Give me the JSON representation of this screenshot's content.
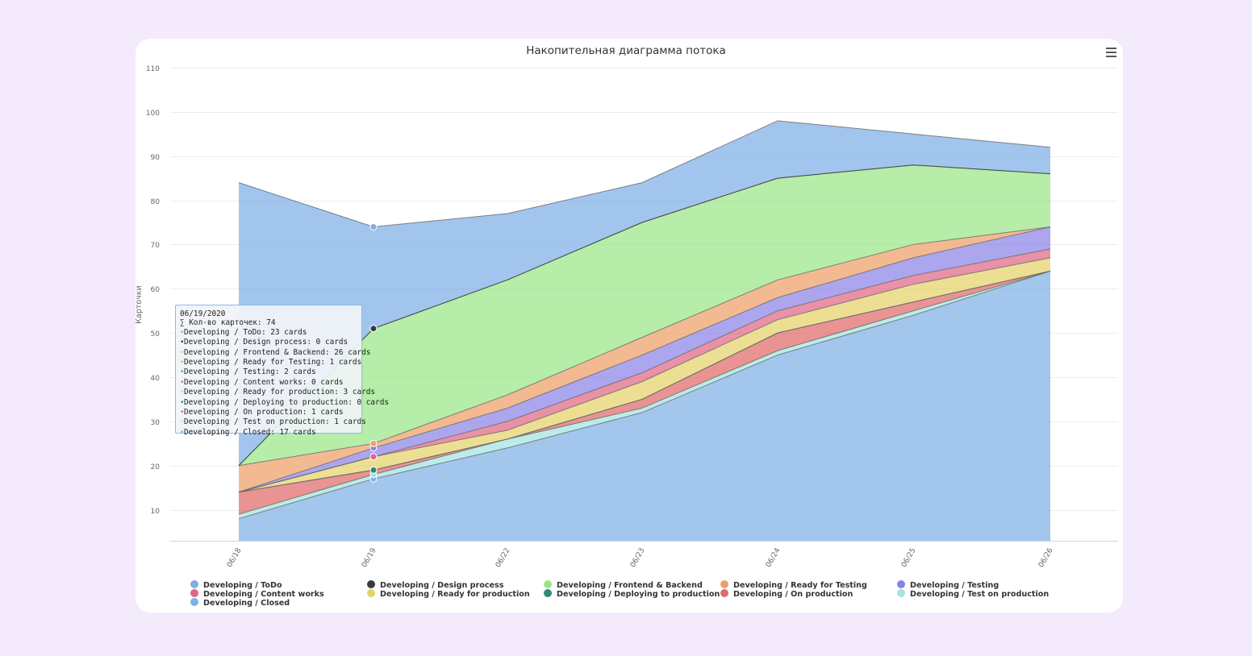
{
  "colors": {
    "page_bg": "#f3eafc",
    "closed": "#7fb0e6",
    "test_on_production": "#a1e4e1",
    "on_production": "#e06a6a",
    "ready_for_production": "#e5d36a",
    "content_works": "#e06683",
    "testing": "#8a83e6",
    "ready_for_testing": "#ee9f68",
    "frontend_backend": "#98e688",
    "design_process": "#3a3a3a",
    "todo": "#7eaee6",
    "deploying": "#2f8a78"
  },
  "menu": {
    "icon": "hamburger-menu-icon"
  },
  "tooltip": {
    "date": "06/19/2020",
    "total": "∑ Кол-во карточек: 74",
    "lines": [
      "Developing / ToDo: 23 cards",
      "Developing / Design process: 0 cards",
      "Developing / Frontend & Backend: 26 cards",
      "Developing / Ready for Testing: 1 cards",
      "Developing / Testing: 2 cards",
      "Developing / Content works: 0 cards",
      "Developing / Ready for production: 3 cards",
      "Developing / Deploying to production: 0 cards",
      "Developing / On production: 1 cards",
      "Developing / Test on production: 1 cards",
      "Developing / Closed: 17 cards"
    ],
    "dot_colors": [
      "#7eaee6",
      "#3a3a3a",
      "#98e688",
      "#ee9f68",
      "#8a83e6",
      "#e06683",
      "#e5d36a",
      "#2f8a78",
      "#e06a6a",
      "#a1e4e1",
      "#7fb0e6"
    ]
  },
  "legend": [
    {
      "label": "Developing / ToDo",
      "color": "#7eaee6"
    },
    {
      "label": "Developing / Design process",
      "color": "#3a3a3a"
    },
    {
      "label": "Developing / Frontend & Backend",
      "color": "#98e688"
    },
    {
      "label": "Developing / Ready for Testing",
      "color": "#ee9f68"
    },
    {
      "label": "Developing / Testing",
      "color": "#8a83e6"
    },
    {
      "label": "Developing / Content works",
      "color": "#e06683"
    },
    {
      "label": "Developing / Ready for production",
      "color": "#e5d36a"
    },
    {
      "label": "Developing / Deploying to production",
      "color": "#2f8a78"
    },
    {
      "label": "Developing / On production",
      "color": "#e06a6a"
    },
    {
      "label": "Developing / Test on production",
      "color": "#a1e4e1"
    },
    {
      "label": "Developing / Closed",
      "color": "#7fb0e6"
    }
  ],
  "chart_data": {
    "type": "area",
    "stacked": true,
    "title": "Накопительная диаграмма потока",
    "ylabel": "Карточки",
    "xlabel": "",
    "categories": [
      "06/18",
      "06/19",
      "06/22",
      "06/23",
      "06/24",
      "06/25",
      "06/26"
    ],
    "ylim": [
      3,
      110
    ],
    "yticks": [
      10,
      20,
      30,
      40,
      50,
      60,
      70,
      80,
      90,
      100,
      110
    ],
    "grid": true,
    "legend_position": "bottom",
    "series": [
      {
        "name": "Developing / Closed",
        "color": "#7fb0e6",
        "values": [
          8,
          17,
          24,
          32,
          45,
          54,
          64
        ]
      },
      {
        "name": "Developing / Test on production",
        "color": "#a1e4e1",
        "values": [
          1,
          1,
          2,
          1,
          1,
          1,
          0
        ]
      },
      {
        "name": "Developing / On production",
        "color": "#e06a6a",
        "values": [
          5,
          1,
          0,
          2,
          4,
          2,
          0
        ]
      },
      {
        "name": "Developing / Deploying to production",
        "color": "#2f8a78",
        "values": [
          0,
          0,
          0,
          0,
          0,
          0,
          0
        ]
      },
      {
        "name": "Developing / Ready for production",
        "color": "#e5d36a",
        "values": [
          0,
          3,
          2,
          4,
          3,
          4,
          3
        ]
      },
      {
        "name": "Developing / Content works",
        "color": "#e06683",
        "values": [
          0,
          0,
          2,
          2,
          2,
          2,
          2
        ]
      },
      {
        "name": "Developing / Testing",
        "color": "#8a83e6",
        "values": [
          0,
          2,
          3,
          4,
          3,
          4,
          5
        ]
      },
      {
        "name": "Developing / Ready for Testing",
        "color": "#ee9f68",
        "values": [
          6,
          1,
          3,
          4,
          4,
          3,
          0
        ]
      },
      {
        "name": "Developing / Frontend & Backend",
        "color": "#98e688",
        "values": [
          0,
          26,
          26,
          26,
          23,
          18,
          12
        ]
      },
      {
        "name": "Developing / Design process",
        "color": "#3a3a3a",
        "values": [
          0,
          0,
          0,
          0,
          0,
          0,
          0
        ]
      },
      {
        "name": "Developing / ToDo",
        "color": "#7eaee6",
        "values": [
          64,
          23,
          15,
          9,
          13,
          7,
          6
        ]
      }
    ],
    "highlight_category": "06/19"
  }
}
